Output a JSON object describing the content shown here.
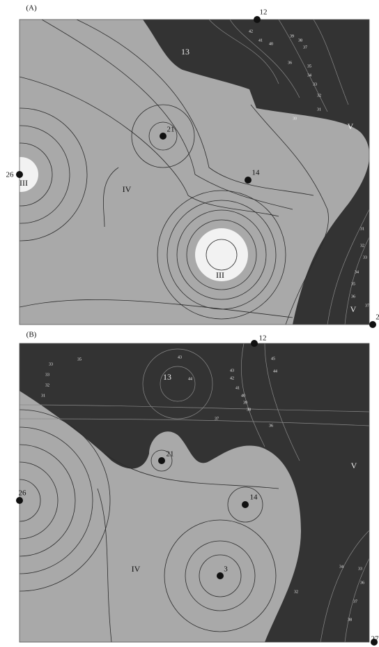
{
  "panels": [
    {
      "label": "(A)",
      "wells": [
        "12",
        "21",
        "26",
        "14",
        "2"
      ],
      "zones": [
        "13",
        "IV",
        "III",
        "III",
        "V",
        "V"
      ],
      "contour_labels": [
        "42",
        "41",
        "40",
        "39",
        "38",
        "37",
        "36",
        "35",
        "34",
        "33",
        "32",
        "31",
        "30",
        "31",
        "32",
        "33",
        "34",
        "35",
        "36",
        "37"
      ]
    },
    {
      "label": "(B)",
      "wells": [
        "12",
        "21",
        "26",
        "14",
        "3",
        "27"
      ],
      "zones": [
        "13",
        "IV",
        "V"
      ],
      "contour_labels": [
        "33",
        "33",
        "32",
        "31",
        "35",
        "43",
        "44",
        "45",
        "44",
        "43",
        "42",
        "41",
        "40",
        "39",
        "38",
        "37",
        "36",
        "34",
        "33",
        "36",
        "37",
        "38",
        "32"
      ]
    }
  ]
}
